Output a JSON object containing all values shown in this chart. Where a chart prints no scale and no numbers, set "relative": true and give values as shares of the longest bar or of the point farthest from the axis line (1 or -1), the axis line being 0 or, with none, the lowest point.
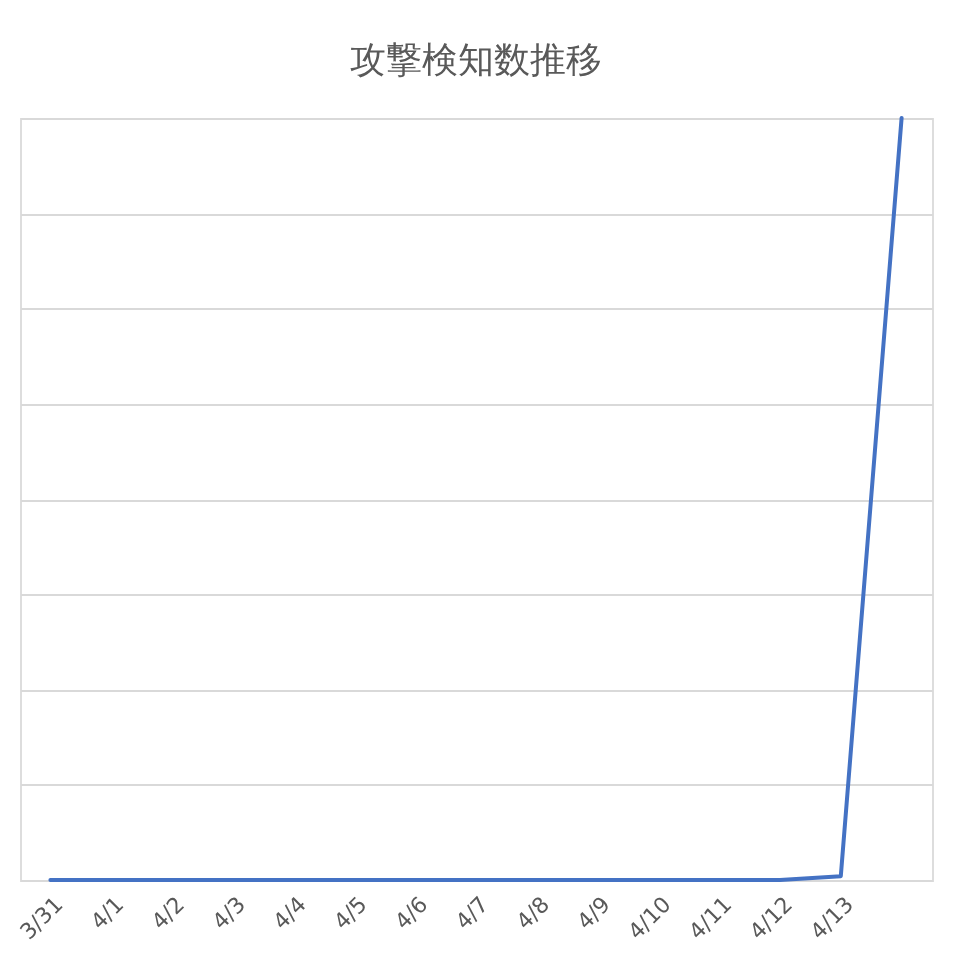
{
  "chart_data": {
    "type": "line",
    "title": "攻撃検知数推移",
    "categories": [
      "3/31",
      "4/1",
      "4/2",
      "4/3",
      "4/4",
      "4/5",
      "4/6",
      "4/7",
      "4/8",
      "4/9",
      "4/10",
      "4/11",
      "4/12",
      "4/13",
      null
    ],
    "series": [
      {
        "color": "#4472c4",
        "values": [
          0,
          0,
          0,
          0,
          0,
          0,
          0,
          0,
          0,
          0,
          0,
          0,
          0,
          0.005,
          1
        ]
      }
    ],
    "relative": true,
    "grid": "y",
    "marker": "none",
    "line_style": "solid"
  }
}
